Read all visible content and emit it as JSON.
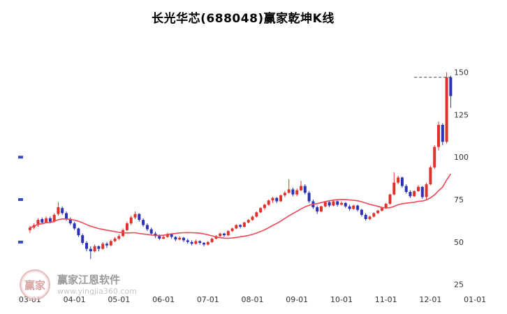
{
  "title": "长光华芯(688048)赢家乾坤K线",
  "watermark": {
    "logo_text": "赢家",
    "brand": "赢家江恩软件",
    "url": "www.yingjia360.com"
  },
  "colors": {
    "up": "#e0322c",
    "down": "#2b32b8",
    "ma": "#f04552",
    "dashed": "#444444",
    "axis_label": "#333333",
    "tick_blue": "#3b4bc8"
  },
  "chart_data": {
    "type": "candlestick",
    "title": "长光华芯(688048)赢家乾坤K线",
    "xlabel": "",
    "ylabel": "",
    "x_labels": [
      "03-01",
      "04-01",
      "05-01",
      "06-01",
      "07-01",
      "08-01",
      "09-01",
      "10-01",
      "11-01",
      "12-01",
      "01-01"
    ],
    "x_label_slots": [
      0,
      11,
      22,
      33,
      44,
      55,
      66,
      77,
      88,
      99,
      110
    ],
    "y_ticks": [
      150,
      125,
      100,
      75,
      50,
      25
    ],
    "ylim": [
      22,
      172
    ],
    "n_slots": 116,
    "grid": false,
    "legend": false,
    "last_price_line": 147,
    "left_tick_values": [
      100,
      75,
      50
    ],
    "ma_window": 20,
    "candles": [
      [
        57,
        59.5,
        55.5,
        58.5
      ],
      [
        58.5,
        61,
        57.5,
        60
      ],
      [
        60,
        64,
        59,
        63
      ],
      [
        63.5,
        64.5,
        60.5,
        61.5
      ],
      [
        61.5,
        65,
        61,
        64
      ],
      [
        64,
        65,
        61,
        62
      ],
      [
        62,
        67,
        61.5,
        66
      ],
      [
        66.5,
        73.5,
        65.5,
        70.5
      ],
      [
        70,
        71,
        66,
        67
      ],
      [
        67,
        68,
        62.5,
        63.5
      ],
      [
        63.5,
        64.5,
        60,
        61
      ],
      [
        61,
        62,
        57,
        58
      ],
      [
        58,
        58.5,
        53,
        54
      ],
      [
        54,
        55,
        48.5,
        49.5
      ],
      [
        49.5,
        50.5,
        44.5,
        46
      ],
      [
        46,
        47.5,
        40,
        44.5
      ],
      [
        44.5,
        48.5,
        44,
        47.5
      ],
      [
        47.5,
        48,
        44.5,
        46
      ],
      [
        46,
        50,
        45.5,
        49
      ],
      [
        49,
        50,
        46.5,
        48
      ],
      [
        48,
        51.5,
        47.5,
        50.5
      ],
      [
        50.5,
        53,
        50,
        52
      ],
      [
        52,
        54.5,
        51,
        53.5
      ],
      [
        53.5,
        58,
        53,
        57
      ],
      [
        57,
        62,
        56.5,
        61
      ],
      [
        61,
        65.5,
        60,
        64.5
      ],
      [
        64.5,
        68,
        63.5,
        66.5
      ],
      [
        66.5,
        67,
        62,
        63
      ],
      [
        63,
        64,
        59,
        60
      ],
      [
        60,
        61,
        56.5,
        57.5
      ],
      [
        57.5,
        58.5,
        54,
        55
      ],
      [
        55,
        56,
        52.5,
        53.5
      ],
      [
        53.5,
        54.5,
        51,
        52
      ],
      [
        52,
        54,
        51.5,
        53
      ],
      [
        53,
        55.5,
        52.5,
        54.5
      ],
      [
        54.5,
        55,
        52,
        53
      ],
      [
        53,
        53.5,
        50.5,
        51.5
      ],
      [
        51.5,
        53.5,
        51,
        52.5
      ],
      [
        52.5,
        53,
        50,
        51
      ],
      [
        51,
        52,
        49,
        50
      ],
      [
        50,
        51,
        48,
        49
      ],
      [
        49,
        51.5,
        48.5,
        50.5
      ],
      [
        50.5,
        51,
        48.5,
        49.5
      ],
      [
        49.5,
        50,
        47.5,
        48.5
      ],
      [
        48.5,
        50.5,
        48,
        50
      ],
      [
        50,
        52.5,
        49.5,
        52
      ],
      [
        52,
        54,
        51.5,
        53.5
      ],
      [
        53.5,
        55.5,
        53,
        55
      ],
      [
        55,
        55.5,
        53,
        54
      ],
      [
        54,
        57,
        53.5,
        56.5
      ],
      [
        56.5,
        58.5,
        56,
        58
      ],
      [
        58,
        60.5,
        57.5,
        60
      ],
      [
        60,
        60.5,
        58,
        59
      ],
      [
        59,
        62,
        58.5,
        61.5
      ],
      [
        61.5,
        63.5,
        61,
        63
      ],
      [
        63,
        65.5,
        62.5,
        65
      ],
      [
        65,
        68,
        64.5,
        67.5
      ],
      [
        67.5,
        70.5,
        67,
        70
      ],
      [
        70,
        72.5,
        69,
        72
      ],
      [
        72,
        75,
        71.5,
        74.5
      ],
      [
        74.5,
        76.5,
        73,
        76
      ],
      [
        76,
        76.5,
        73,
        74
      ],
      [
        74,
        78,
        73.5,
        77.5
      ],
      [
        77.5,
        80,
        76.5,
        79
      ],
      [
        79,
        87,
        78.5,
        81
      ],
      [
        81,
        82,
        77,
        78
      ],
      [
        78,
        81.5,
        77,
        80.5
      ],
      [
        80.5,
        86,
        80,
        83
      ],
      [
        83,
        84,
        78,
        79
      ],
      [
        79,
        80,
        73,
        74
      ],
      [
        74,
        75,
        69.5,
        70.5
      ],
      [
        70.5,
        71.5,
        66.5,
        68
      ],
      [
        68,
        71.5,
        67.5,
        71
      ],
      [
        71,
        74,
        70.5,
        73.5
      ],
      [
        73.5,
        74,
        70.5,
        71.5
      ],
      [
        71.5,
        74.5,
        71,
        74
      ],
      [
        74,
        74.5,
        71,
        72
      ],
      [
        72,
        74,
        71.5,
        73
      ],
      [
        73,
        73.5,
        70,
        71
      ],
      [
        71,
        72,
        68.5,
        69.5
      ],
      [
        69.5,
        72,
        69,
        71.5
      ],
      [
        71.5,
        72,
        68,
        69
      ],
      [
        69,
        69.5,
        65,
        66
      ],
      [
        66,
        67,
        62.5,
        63.5
      ],
      [
        63.5,
        65.5,
        63,
        65
      ],
      [
        65,
        67.5,
        64.5,
        67
      ],
      [
        67,
        69,
        66.5,
        68.5
      ],
      [
        68.5,
        70.5,
        68,
        70
      ],
      [
        70,
        73,
        69.5,
        72.5
      ],
      [
        72.5,
        78.5,
        72,
        78
      ],
      [
        78,
        91,
        77.5,
        85
      ],
      [
        85,
        89,
        84,
        88
      ],
      [
        88,
        88.5,
        82,
        83
      ],
      [
        83,
        84,
        78.5,
        79.5
      ],
      [
        79.5,
        80.5,
        76,
        77
      ],
      [
        77,
        80.5,
        76.5,
        80
      ],
      [
        80,
        83.5,
        79.5,
        82.5
      ],
      [
        82.5,
        83,
        75.5,
        76.5
      ],
      [
        76.5,
        85,
        75,
        84
      ],
      [
        84,
        95,
        83.5,
        94
      ],
      [
        94,
        107,
        93,
        106
      ],
      [
        106,
        121,
        104,
        119
      ],
      [
        119,
        120,
        107,
        109
      ],
      [
        109,
        150,
        108,
        147
      ],
      [
        147,
        148,
        129,
        136
      ]
    ]
  }
}
